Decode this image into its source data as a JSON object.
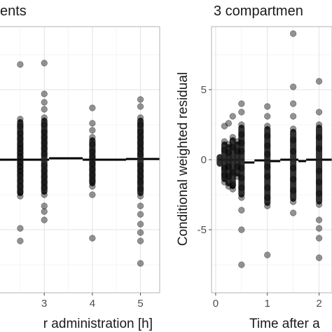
{
  "chart_data": [
    {
      "type": "scatter",
      "title": "ents",
      "xlabel": "r administration [h]",
      "ylabel": "",
      "xlim": [
        2.05,
        5.4
      ],
      "ylim": [
        -9.5,
        9.5
      ],
      "xticks": [
        3,
        4,
        5
      ],
      "yticks": [],
      "grid": "on",
      "reference_line_y": 0,
      "series": [
        {
          "points": [
            [
              2.5,
              6.8
            ],
            [
              2.5,
              2.9
            ],
            [
              2.5,
              2.4
            ],
            [
              2.5,
              1.9
            ],
            [
              2.5,
              1.5
            ],
            [
              2.5,
              1.1
            ],
            [
              2.5,
              0.8
            ],
            [
              2.5,
              0.5
            ],
            [
              2.5,
              0.2
            ],
            [
              2.5,
              -0.2
            ],
            [
              2.5,
              -0.5
            ],
            [
              2.5,
              -0.8
            ],
            [
              2.5,
              -1.1
            ],
            [
              2.5,
              -1.5
            ],
            [
              2.5,
              -1.9
            ],
            [
              2.5,
              -2.3
            ],
            [
              2.5,
              -2.6
            ],
            [
              2.5,
              -4.9
            ],
            [
              2.5,
              -5.8
            ],
            [
              3.0,
              6.9
            ],
            [
              3.0,
              4.7
            ],
            [
              3.0,
              4.1
            ],
            [
              3.0,
              3.6
            ],
            [
              3.0,
              3.0
            ],
            [
              3.0,
              2.5
            ],
            [
              3.0,
              2.0
            ],
            [
              3.0,
              1.6
            ],
            [
              3.0,
              1.2
            ],
            [
              3.0,
              0.8
            ],
            [
              3.0,
              0.4
            ],
            [
              3.0,
              -0.4
            ],
            [
              3.0,
              -0.8
            ],
            [
              3.0,
              -1.2
            ],
            [
              3.0,
              -1.6
            ],
            [
              3.0,
              -2.0
            ],
            [
              3.0,
              -2.5
            ],
            [
              3.0,
              -3.3
            ],
            [
              3.0,
              -3.7
            ],
            [
              3.0,
              -4.3
            ],
            [
              4.0,
              3.7
            ],
            [
              4.0,
              2.6
            ],
            [
              4.0,
              2.1
            ],
            [
              4.0,
              1.6
            ],
            [
              4.0,
              1.1
            ],
            [
              4.0,
              0.6
            ],
            [
              4.0,
              0.2
            ],
            [
              4.0,
              -0.3
            ],
            [
              4.0,
              -0.7
            ],
            [
              4.0,
              -1.1
            ],
            [
              4.0,
              -1.5
            ],
            [
              4.0,
              -1.9
            ],
            [
              4.0,
              -2.5
            ],
            [
              4.0,
              -5.6
            ],
            [
              5.0,
              4.3
            ],
            [
              5.0,
              3.8
            ],
            [
              5.0,
              3.0
            ],
            [
              5.0,
              2.5
            ],
            [
              5.0,
              2.0
            ],
            [
              5.0,
              1.6
            ],
            [
              5.0,
              1.2
            ],
            [
              5.0,
              0.8
            ],
            [
              5.0,
              0.4
            ],
            [
              5.0,
              -0.4
            ],
            [
              5.0,
              -0.8
            ],
            [
              5.0,
              -1.2
            ],
            [
              5.0,
              -1.6
            ],
            [
              5.0,
              -2.1
            ],
            [
              5.0,
              -2.6
            ],
            [
              5.0,
              -3.3
            ],
            [
              5.0,
              -3.9
            ],
            [
              5.0,
              -4.6
            ],
            [
              5.0,
              -5.2
            ],
            [
              5.0,
              -5.8
            ],
            [
              5.0,
              -7.4
            ]
          ]
        }
      ],
      "columns": [
        {
          "x": 2.5,
          "lo": -2.6,
          "hi": 2.9
        },
        {
          "x": 3.0,
          "lo": -2.5,
          "hi": 3.0
        },
        {
          "x": 4.0,
          "lo": -1.9,
          "hi": 1.6
        },
        {
          "x": 5.0,
          "lo": -2.6,
          "hi": 3.0
        }
      ],
      "median_segments": [
        {
          "x0": 2.05,
          "x1": 2.42,
          "y": 0.0
        },
        {
          "x0": 2.42,
          "x1": 3.1,
          "y": 0.0
        },
        {
          "x0": 3.1,
          "x1": 3.8,
          "y": 0.1
        },
        {
          "x0": 3.8,
          "x1": 4.7,
          "y": 0.0
        },
        {
          "x0": 4.7,
          "x1": 5.4,
          "y": 0.05
        }
      ]
    },
    {
      "type": "scatter",
      "title": "3 compartmen",
      "xlabel": "Time after a",
      "ylabel": "Conditional weighted residual",
      "xlim": [
        -0.08,
        2.25
      ],
      "ylim": [
        -9.5,
        9.5
      ],
      "xticks": [
        0,
        1,
        2
      ],
      "yticks": [
        -5,
        0,
        5
      ],
      "grid": "on",
      "reference_line_y": 0,
      "series": [
        {
          "points": [
            [
              0.17,
              2.4
            ],
            [
              0.17,
              1.3
            ],
            [
              0.17,
              0.7
            ],
            [
              0.17,
              -0.6
            ],
            [
              0.17,
              -1.1
            ],
            [
              0.17,
              -1.6
            ],
            [
              0.25,
              2.6
            ],
            [
              0.25,
              1.1
            ],
            [
              0.25,
              0.5
            ],
            [
              0.25,
              -0.5
            ],
            [
              0.25,
              -1.2
            ],
            [
              0.25,
              -1.9
            ],
            [
              0.33,
              3.1
            ],
            [
              0.33,
              1.6
            ],
            [
              0.33,
              0.9
            ],
            [
              0.33,
              -0.9
            ],
            [
              0.33,
              -1.8
            ],
            [
              0.33,
              -2.1
            ],
            [
              0.42,
              1.3
            ],
            [
              0.42,
              0.6
            ],
            [
              0.42,
              -0.5
            ],
            [
              0.42,
              -1.2
            ],
            [
              0.5,
              4.0
            ],
            [
              0.5,
              3.4
            ],
            [
              0.5,
              2.5
            ],
            [
              0.5,
              1.8
            ],
            [
              0.5,
              1.2
            ],
            [
              0.5,
              0.6
            ],
            [
              0.5,
              -0.6
            ],
            [
              0.5,
              -1.3
            ],
            [
              0.5,
              -2.0
            ],
            [
              0.5,
              -2.7
            ],
            [
              0.5,
              -3.6
            ],
            [
              0.5,
              -5.0
            ],
            [
              0.5,
              -7.5
            ],
            [
              1.0,
              3.8
            ],
            [
              1.0,
              3.1
            ],
            [
              1.0,
              2.4
            ],
            [
              1.0,
              1.7
            ],
            [
              1.0,
              1.0
            ],
            [
              1.0,
              0.4
            ],
            [
              1.0,
              -0.5
            ],
            [
              1.0,
              -1.2
            ],
            [
              1.0,
              -2.0
            ],
            [
              1.0,
              -2.7
            ],
            [
              1.0,
              -3.3
            ],
            [
              1.0,
              -6.8
            ],
            [
              1.5,
              9.0
            ],
            [
              1.5,
              5.2
            ],
            [
              1.5,
              4.0
            ],
            [
              1.5,
              3.1
            ],
            [
              1.5,
              2.2
            ],
            [
              1.5,
              1.4
            ],
            [
              1.5,
              0.6
            ],
            [
              1.5,
              -0.6
            ],
            [
              1.5,
              -1.4
            ],
            [
              1.5,
              -2.2
            ],
            [
              1.5,
              -3.0
            ],
            [
              1.5,
              -3.8
            ],
            [
              2.0,
              5.6
            ],
            [
              2.0,
              3.4
            ],
            [
              2.0,
              2.5
            ],
            [
              2.0,
              1.6
            ],
            [
              2.0,
              0.8
            ],
            [
              2.0,
              -0.8
            ],
            [
              2.0,
              -1.6
            ],
            [
              2.0,
              -2.4
            ],
            [
              2.0,
              -3.2
            ],
            [
              2.0,
              -4.3
            ],
            [
              2.0,
              -4.9
            ],
            [
              2.0,
              -5.6
            ],
            [
              2.0,
              -7.0
            ]
          ]
        }
      ],
      "columns": [
        {
          "x": 0.08,
          "lo": -0.5,
          "hi": 0.4
        },
        {
          "x": 0.17,
          "lo": -1.6,
          "hi": 1.3
        },
        {
          "x": 0.25,
          "lo": -1.9,
          "hi": 1.1
        },
        {
          "x": 0.33,
          "lo": -2.1,
          "hi": 1.6
        },
        {
          "x": 0.42,
          "lo": -1.2,
          "hi": 1.3
        },
        {
          "x": 0.5,
          "lo": -2.7,
          "hi": 2.5
        },
        {
          "x": 1.0,
          "lo": -3.3,
          "hi": 2.4
        },
        {
          "x": 1.5,
          "lo": -3.0,
          "hi": 2.2
        },
        {
          "x": 2.0,
          "lo": -3.2,
          "hi": 2.5
        }
      ],
      "median_segments": [
        {
          "x0": 0.05,
          "x1": 0.55,
          "y": 0.0
        },
        {
          "x0": 0.55,
          "x1": 0.75,
          "y": -0.2
        },
        {
          "x0": 0.75,
          "x1": 1.05,
          "y": -0.05
        },
        {
          "x0": 1.05,
          "x1": 1.25,
          "y": -0.1
        },
        {
          "x0": 1.25,
          "x1": 1.6,
          "y": 0.0
        },
        {
          "x0": 1.6,
          "x1": 1.75,
          "y": -0.1
        },
        {
          "x0": 1.75,
          "x1": 2.25,
          "y": 0.0
        }
      ]
    }
  ]
}
